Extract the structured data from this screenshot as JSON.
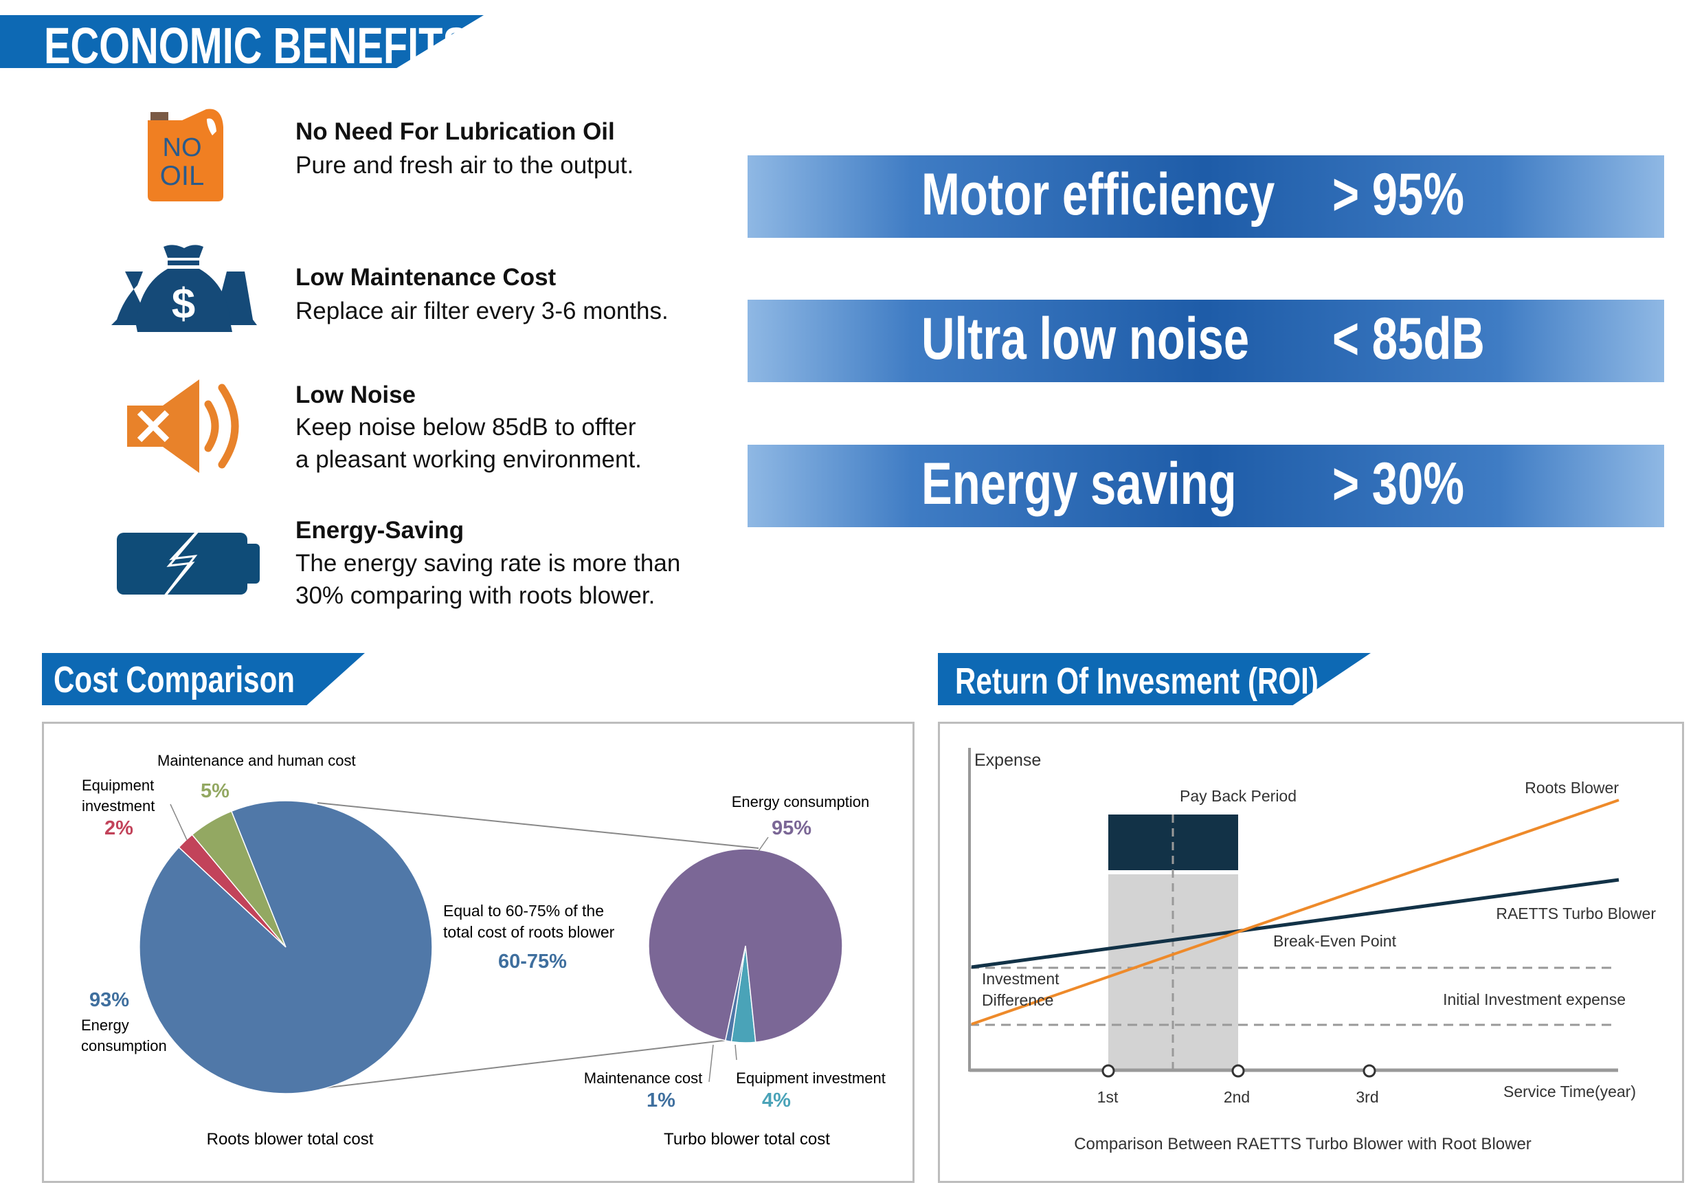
{
  "header": {
    "title": "ECONOMIC BENEFITS"
  },
  "features": [
    {
      "icon": "no-oil-can-icon",
      "title": "No Need For Lubrication Oil",
      "lines": [
        "Pure and fresh air to the output."
      ],
      "icon_text": [
        "NO",
        "OIL"
      ]
    },
    {
      "icon": "money-bags-icon",
      "title": "Low Maintenance Cost",
      "lines": [
        "Replace air filter every 3-6 months."
      ],
      "icon_text": [
        "$"
      ]
    },
    {
      "icon": "muted-speaker-icon",
      "title": "Low Noise",
      "lines": [
        "Keep noise below 85dB to offter",
        "a pleasant working environment."
      ]
    },
    {
      "icon": "battery-lightning-icon",
      "title": "Energy-Saving",
      "lines": [
        "The energy saving rate is more than",
        "30% comparing with roots blower."
      ]
    }
  ],
  "stats": [
    {
      "label": "Motor efficiency",
      "value": "> 95%"
    },
    {
      "label": "Ultra low noise",
      "value": "< 85dB"
    },
    {
      "label": "Energy saving",
      "value": "> 30%"
    }
  ],
  "colors": {
    "brand_blue": "#0d69b4",
    "orange": "#ee8a2a",
    "navy": "#123247",
    "pie_blue": "#5078a8",
    "pie_red": "#c2435a",
    "pie_green": "#93a862",
    "pie_purple": "#7b6796",
    "pie_teal": "#4aa3b8"
  },
  "cost": {
    "title": "Cost Comparison",
    "note_lines": [
      "Equal to 60-75% of the",
      "total cost of roots blower"
    ],
    "note_value": "60-75%"
  },
  "roi": {
    "title": "Return Of Invesment (ROI)",
    "y_label": "Expense",
    "x_label": "Service Time(year)",
    "x_ticks": [
      "1st",
      "2nd",
      "3rd"
    ],
    "payback_label": "Pay Back Period",
    "break_even_label": "Break-Even Point",
    "investment_diff_lines": [
      "Investment",
      "Difference"
    ],
    "initial_label": "Initial Investment expense",
    "roots_label": "Roots Blower",
    "turbo_label": "RAETTS Turbo Blower",
    "caption": "Comparison Between RAETTS Turbo Blower with Root Blower"
  },
  "chart_data": [
    {
      "type": "pie",
      "title": "Roots blower total cost",
      "slices": [
        {
          "name": "Energy consumption",
          "label_lines": [
            "Energy",
            "consumption"
          ],
          "value": 93,
          "display": "93%",
          "color": "#5078a8"
        },
        {
          "name": "Equipment investment",
          "label_lines": [
            "Equipment",
            "investment"
          ],
          "value": 2,
          "display": "2%",
          "color": "#c2435a"
        },
        {
          "name": "Maintenance and human cost",
          "label_lines": [
            "Maintenance and human cost"
          ],
          "value": 5,
          "display": "5%",
          "color": "#93a862"
        }
      ]
    },
    {
      "type": "pie",
      "title": "Turbo blower total cost",
      "slices": [
        {
          "name": "Energy consumption",
          "label_lines": [
            "Energy consumption"
          ],
          "value": 95,
          "display": "95%",
          "color": "#7b6796"
        },
        {
          "name": "Equipment investment",
          "label_lines": [
            "Equipment investment"
          ],
          "value": 4,
          "display": "4%",
          "color": "#4aa3b8"
        },
        {
          "name": "Maintenance cost",
          "label_lines": [
            "Maintenance cost"
          ],
          "value": 1,
          "display": "1%",
          "color": "#5078a8"
        }
      ]
    }
  ]
}
